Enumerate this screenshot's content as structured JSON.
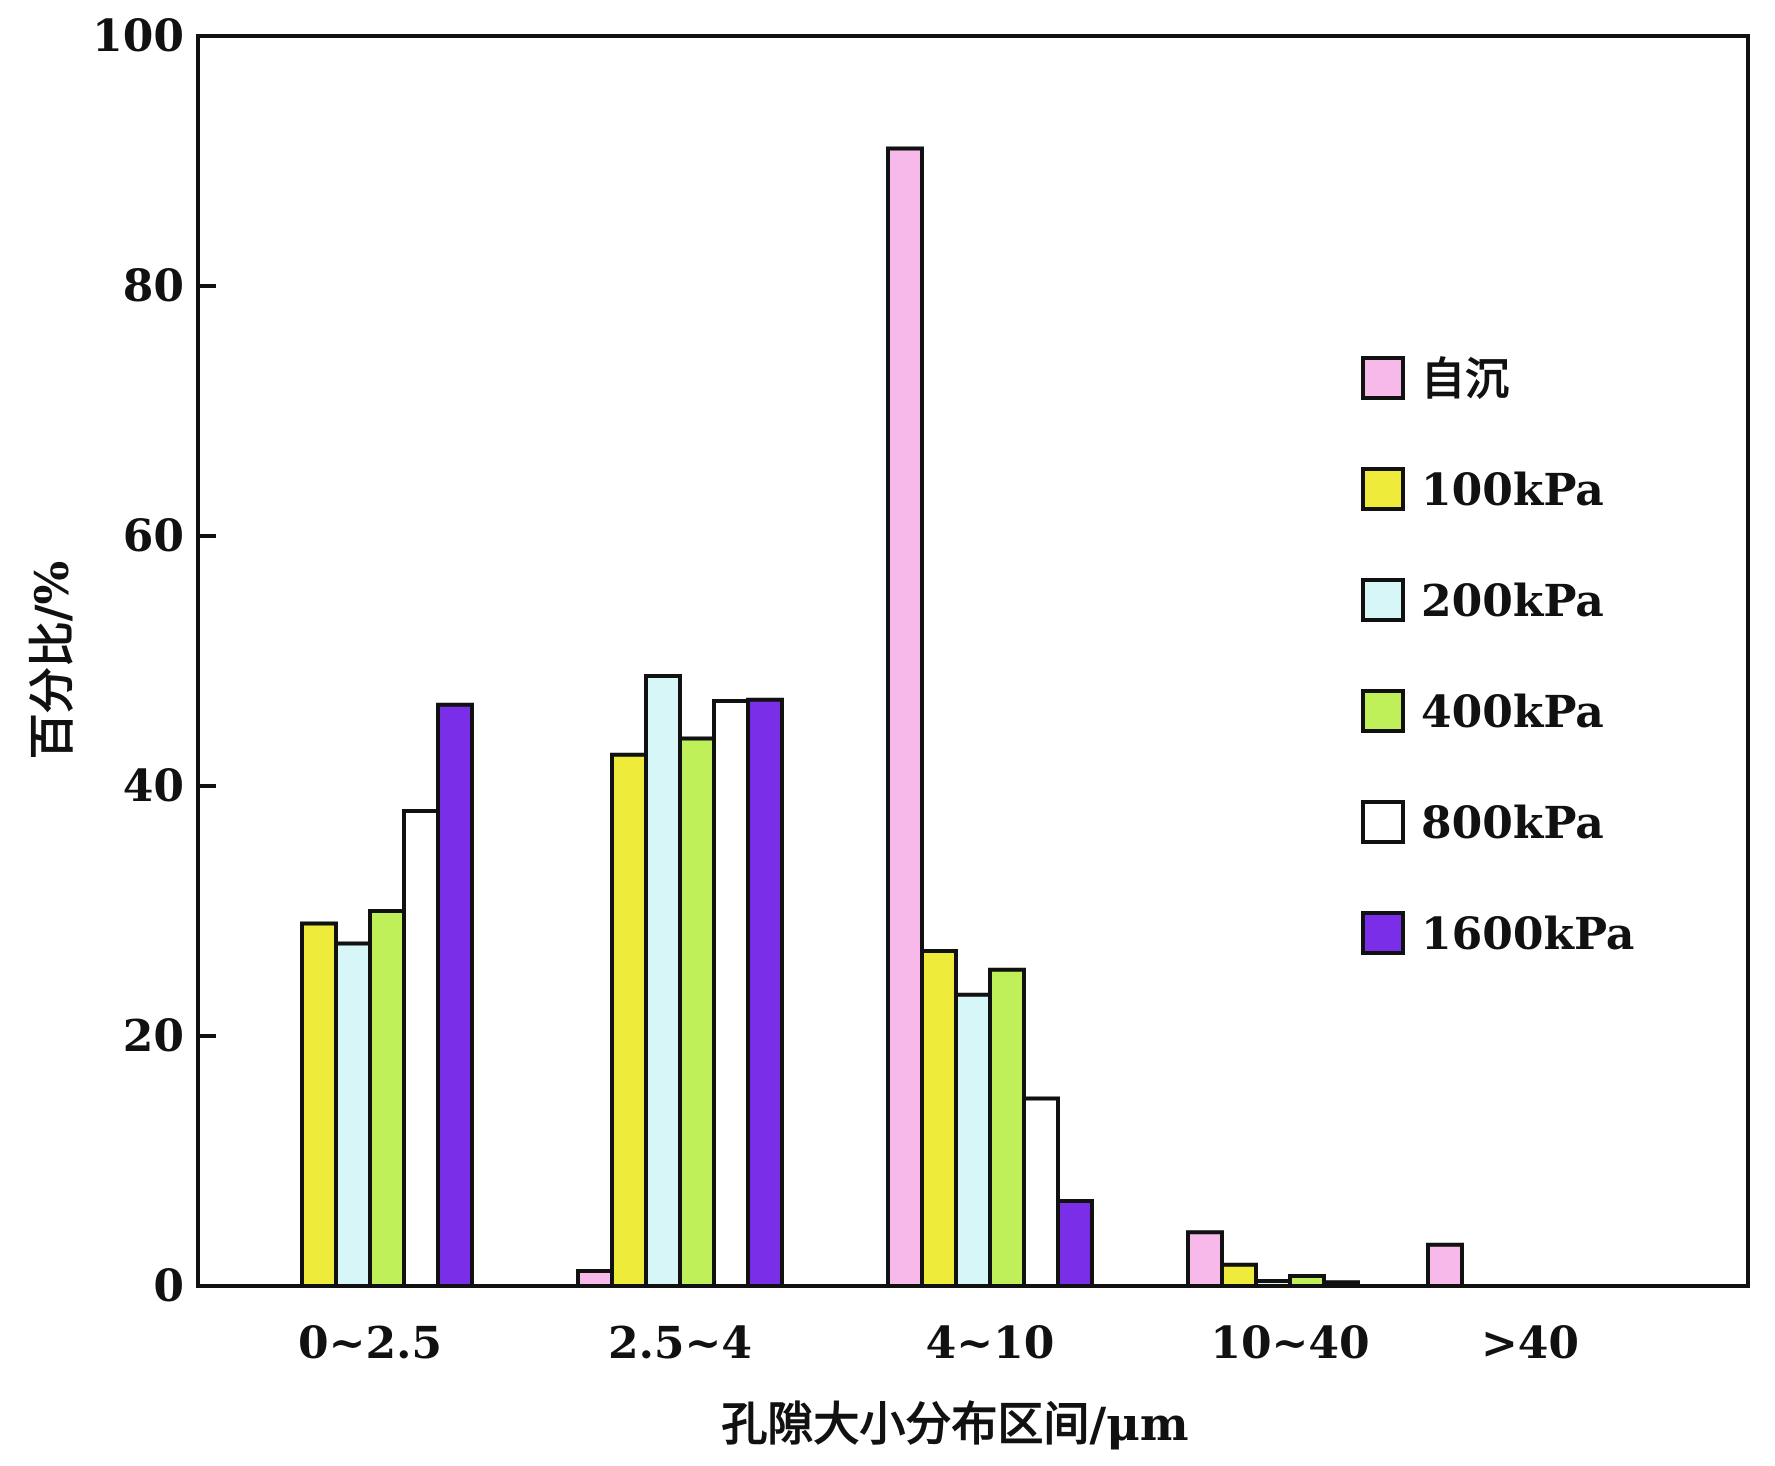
{
  "chart_data": {
    "type": "bar",
    "title": "",
    "xlabel": "孔隙大小分布区间/μm",
    "ylabel": "百分比/%",
    "ylim": [
      0,
      100
    ],
    "yticks": [
      "0",
      "20",
      "40",
      "60",
      "80",
      "100"
    ],
    "grid": false,
    "legend_position": "right",
    "categories": [
      "0~2.5",
      "2.5~4",
      "4~10",
      "10~40",
      ">40"
    ],
    "series": [
      {
        "name": "自沉",
        "color": "#f7b8ea",
        "values": [
          0,
          1.2,
          91,
          4.3,
          3.3
        ]
      },
      {
        "name": "100kPa",
        "color": "#eeeb3a",
        "values": [
          29,
          42.5,
          26.8,
          1.7,
          0
        ]
      },
      {
        "name": "200kPa",
        "color": "#d7f6f8",
        "values": [
          27.4,
          48.8,
          23.3,
          0.4,
          0
        ]
      },
      {
        "name": "400kPa",
        "color": "#bff05a",
        "values": [
          30,
          43.8,
          25.3,
          0.8,
          0
        ]
      },
      {
        "name": "800kPa",
        "color": "#ffffff",
        "values": [
          38,
          46.8,
          15,
          0.3,
          0
        ]
      },
      {
        "name": "1600kPa",
        "color": "#7a2ee8",
        "values": [
          46.5,
          46.9,
          6.8,
          0,
          0
        ]
      }
    ]
  }
}
